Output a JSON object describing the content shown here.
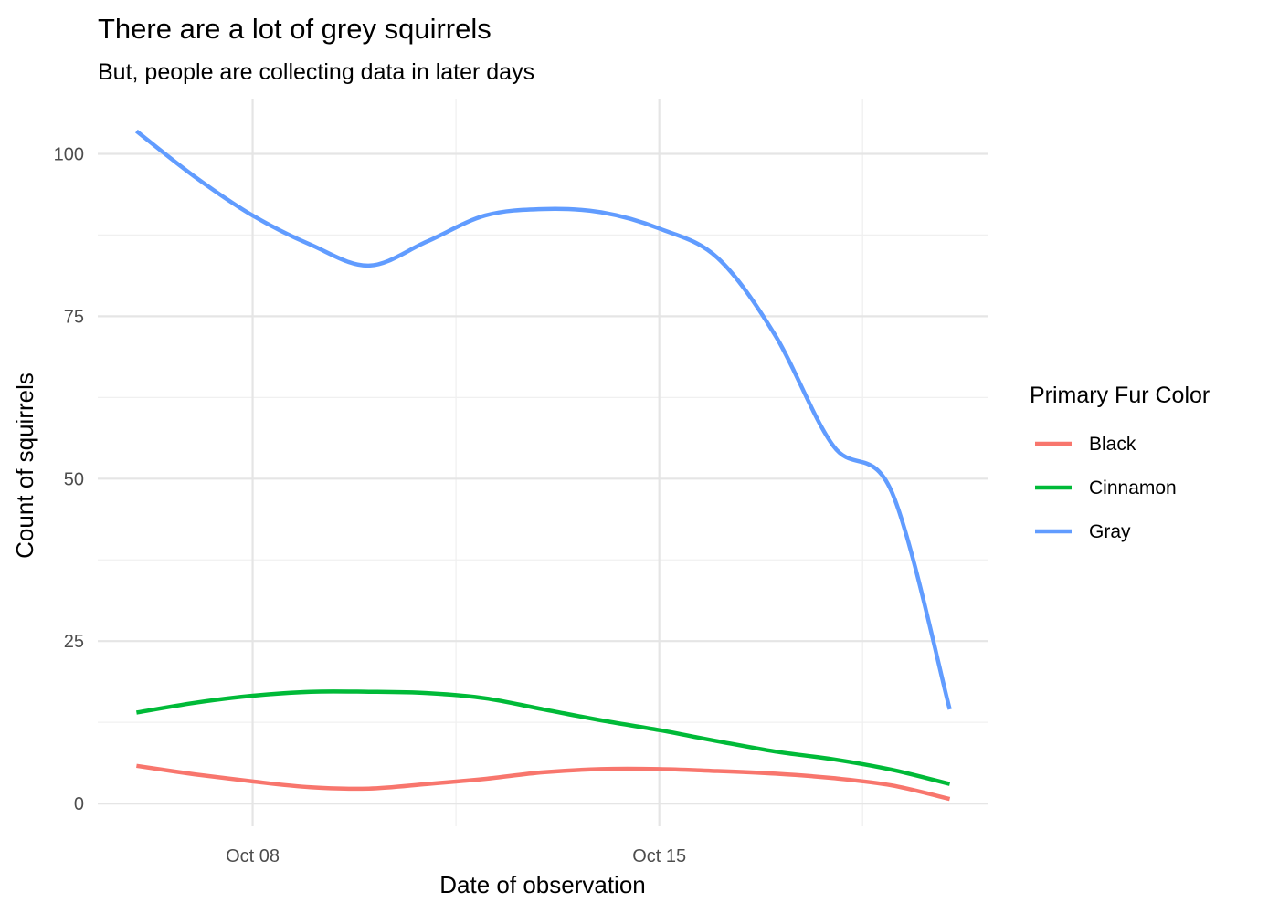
{
  "chart_data": {
    "type": "line",
    "title": "There are a lot of grey squirrels",
    "subtitle": "But, people are collecting data in later days",
    "xlabel": "Date of observation",
    "ylabel": "Count of squirrels",
    "x_ticks": [
      {
        "date": "2018-10-08",
        "label": "Oct 08"
      },
      {
        "date": "2018-10-15",
        "label": "Oct 15"
      }
    ],
    "y_ticks": [
      0,
      25,
      50,
      75,
      100
    ],
    "ylim": [
      -3.5,
      108.5
    ],
    "xlim": [
      "2018-10-05T08:00",
      "2018-10-20T16:00"
    ],
    "x_minor_grid": [
      "2018-10-11T12:00",
      "2018-10-18T12:00"
    ],
    "y_minor_grid": [
      12.5,
      37.5,
      62.5,
      87.5
    ],
    "grid": true,
    "legend": {
      "title": "Primary Fur Color",
      "position": "right"
    },
    "x": [
      "2018-10-06",
      "2018-10-07",
      "2018-10-08",
      "2018-10-09",
      "2018-10-10",
      "2018-10-11",
      "2018-10-12",
      "2018-10-13",
      "2018-10-14",
      "2018-10-15",
      "2018-10-16",
      "2018-10-17",
      "2018-10-18",
      "2018-10-19",
      "2018-10-20"
    ],
    "series": [
      {
        "name": "Black",
        "color": "#F8766D",
        "values": [
          5.8,
          4.5,
          3.4,
          2.5,
          2.3,
          3.0,
          3.8,
          4.8,
          5.3,
          5.3,
          5.0,
          4.6,
          3.9,
          2.8,
          0.7
        ]
      },
      {
        "name": "Cinnamon",
        "color": "#00BA38",
        "values": [
          14.0,
          15.5,
          16.6,
          17.2,
          17.2,
          17.0,
          16.2,
          14.5,
          12.8,
          11.3,
          9.6,
          8.0,
          6.8,
          5.2,
          3.0
        ]
      },
      {
        "name": "Gray",
        "color": "#619CFF",
        "values": [
          103.5,
          96.5,
          90.5,
          86.0,
          82.8,
          86.5,
          90.5,
          91.5,
          91.0,
          88.5,
          84.0,
          72.0,
          55.0,
          48.0,
          14.5
        ]
      }
    ]
  }
}
